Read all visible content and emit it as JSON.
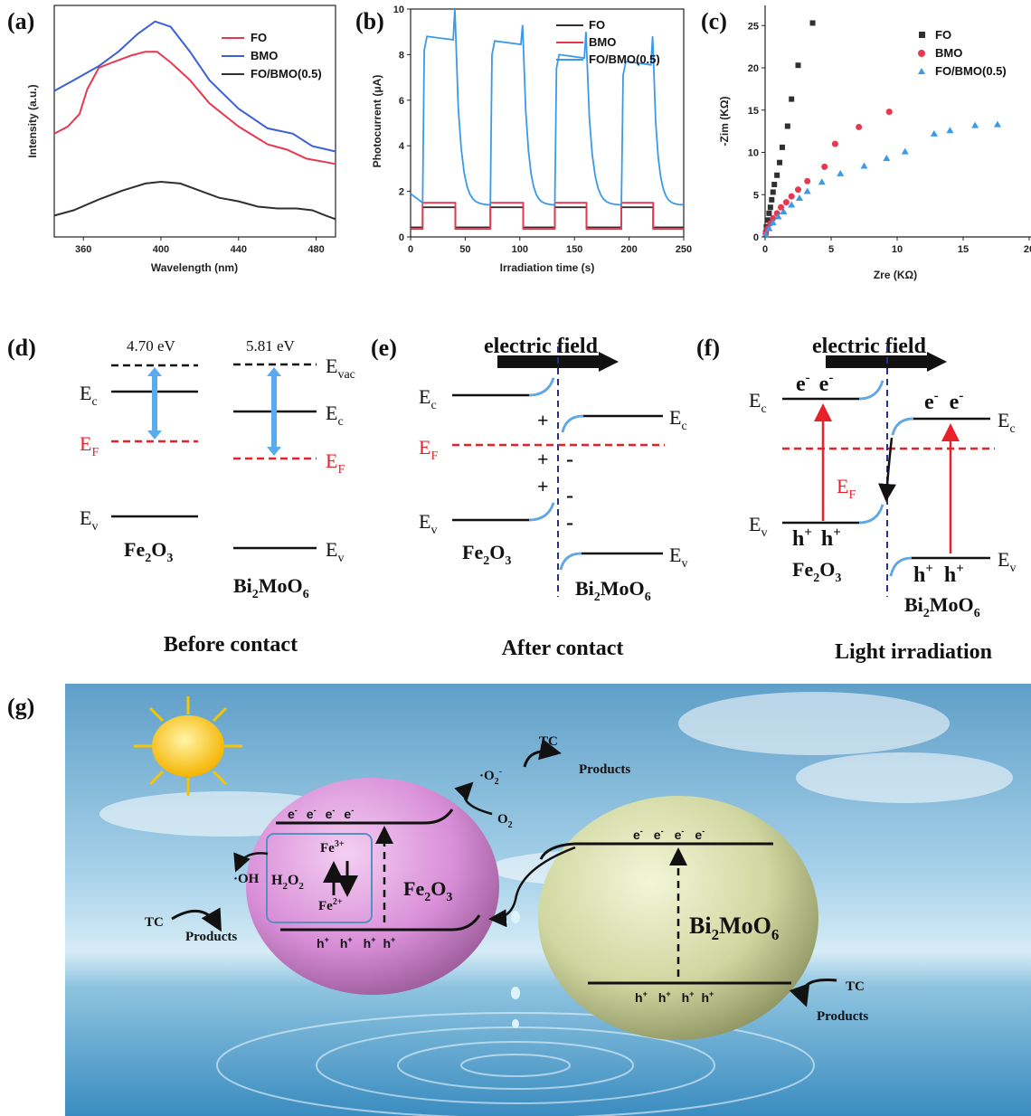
{
  "panel_labels": {
    "a": "(a)",
    "b": "(b)",
    "c": "(c)",
    "d": "(d)",
    "e": "(e)",
    "f": "(f)",
    "g": "(g)"
  },
  "colors": {
    "FO": "#e8384f",
    "BMO": "#3b5fd9",
    "FOBMO": "#303030",
    "fo_curr": "#303030",
    "bmo_curr": "#e8384f",
    "fobmo_curr": "#3b9ae8",
    "fermi": "#e8202a",
    "band": "#111111",
    "blue_arrow": "#5aaaf0",
    "red_arrow": "#e8202a"
  },
  "chart_data": [
    {
      "type": "line",
      "xlabel": "Wavelength (nm)",
      "ylabel": "Intensity (a.u.)",
      "xlim": [
        345,
        490
      ],
      "xticks": [
        "360",
        "400",
        "440",
        "480"
      ],
      "legend_position": "top-right",
      "series": [
        {
          "name": "FO",
          "points": [
            [
              345,
              58
            ],
            [
              352,
              62
            ],
            [
              358,
              69
            ],
            [
              362,
              83
            ],
            [
              368,
              95
            ],
            [
              375,
              98
            ],
            [
              385,
              102
            ],
            [
              392,
              104
            ],
            [
              398,
              104
            ],
            [
              405,
              98
            ],
            [
              415,
              88
            ],
            [
              425,
              75
            ],
            [
              440,
              62
            ],
            [
              455,
              52
            ],
            [
              465,
              49
            ],
            [
              475,
              44
            ],
            [
              485,
              42
            ],
            [
              490,
              41
            ]
          ]
        },
        {
          "name": "BMO",
          "points": [
            [
              345,
              82
            ],
            [
              355,
              88
            ],
            [
              368,
              96
            ],
            [
              378,
              104
            ],
            [
              388,
              114
            ],
            [
              397,
              121
            ],
            [
              405,
              118
            ],
            [
              415,
              104
            ],
            [
              425,
              88
            ],
            [
              440,
              72
            ],
            [
              455,
              61
            ],
            [
              468,
              58
            ],
            [
              478,
              51
            ],
            [
              490,
              48
            ]
          ]
        },
        {
          "name": "FO/BMO(0.5)",
          "points": [
            [
              345,
              12
            ],
            [
              355,
              15
            ],
            [
              368,
              21
            ],
            [
              380,
              26
            ],
            [
              392,
              30
            ],
            [
              400,
              31
            ],
            [
              410,
              30
            ],
            [
              420,
              26
            ],
            [
              430,
              22
            ],
            [
              440,
              20
            ],
            [
              450,
              17
            ],
            [
              460,
              16
            ],
            [
              470,
              16
            ],
            [
              478,
              15
            ],
            [
              485,
              12
            ],
            [
              490,
              10
            ]
          ]
        }
      ]
    },
    {
      "type": "line",
      "xlabel": "Irradiation time (s)",
      "ylabel": "Photocurrent (μA)",
      "xlim": [
        0,
        250
      ],
      "ylim": [
        0,
        10
      ],
      "xticks": [
        "0",
        "50",
        "100",
        "150",
        "200",
        "250"
      ],
      "yticks": [
        "0",
        "2",
        "4",
        "6",
        "8",
        "10"
      ],
      "legend_position": "top-right",
      "on_intervals": [
        [
          11,
          41
        ],
        [
          73,
          103
        ],
        [
          132,
          161
        ],
        [
          193,
          222
        ]
      ],
      "series": [
        {
          "name": "FO",
          "dark": 0.42,
          "light": 1.3
        },
        {
          "name": "BMO",
          "dark": 0.35,
          "light": 1.5
        },
        {
          "name": "FO/BMO(0.5)",
          "dark": 0.35,
          "light": 8.8,
          "peaks": [
            10.0,
            9.3,
            9.0,
            8.8
          ],
          "plateaus": [
            8.8,
            8.6,
            8.0,
            7.7
          ]
        }
      ]
    },
    {
      "type": "scatter",
      "xlabel": "Zre (KΩ)",
      "ylabel": "-Zim (KΩ)",
      "xlim": [
        0,
        20
      ],
      "ylim": [
        0,
        26
      ],
      "xticks": [
        "0",
        "5",
        "10",
        "15",
        "20"
      ],
      "yticks": [
        "0",
        "5",
        "10",
        "15",
        "20",
        "25"
      ],
      "legend_position": "top-right",
      "series": [
        {
          "name": "FO",
          "marker": "square",
          "points": [
            [
              0.05,
              0.5
            ],
            [
              0.1,
              1.2
            ],
            [
              0.2,
              2.0
            ],
            [
              0.3,
              2.8
            ],
            [
              0.4,
              3.5
            ],
            [
              0.5,
              4.4
            ],
            [
              0.6,
              5.3
            ],
            [
              0.7,
              6.2
            ],
            [
              0.9,
              7.3
            ],
            [
              1.1,
              8.8
            ],
            [
              1.3,
              10.6
            ],
            [
              1.7,
              13.1
            ],
            [
              2.0,
              16.3
            ],
            [
              2.5,
              20.3
            ],
            [
              3.6,
              25.3
            ]
          ]
        },
        {
          "name": "BMO",
          "marker": "circle",
          "points": [
            [
              0.05,
              0.4
            ],
            [
              0.2,
              1.0
            ],
            [
              0.4,
              1.6
            ],
            [
              0.6,
              2.2
            ],
            [
              0.9,
              2.8
            ],
            [
              1.2,
              3.5
            ],
            [
              1.6,
              4.1
            ],
            [
              2.0,
              4.8
            ],
            [
              2.5,
              5.6
            ],
            [
              3.2,
              6.6
            ],
            [
              4.5,
              8.3
            ],
            [
              5.3,
              11.0
            ],
            [
              7.1,
              13.0
            ],
            [
              9.4,
              14.8
            ]
          ]
        },
        {
          "name": "FO/BMO(0.5)",
          "marker": "triangle",
          "points": [
            [
              0.05,
              0.3
            ],
            [
              0.3,
              1.0
            ],
            [
              0.6,
              1.7
            ],
            [
              1.0,
              2.4
            ],
            [
              1.4,
              3.0
            ],
            [
              2.0,
              3.8
            ],
            [
              2.6,
              4.6
            ],
            [
              3.2,
              5.4
            ],
            [
              4.3,
              6.5
            ],
            [
              5.7,
              7.5
            ],
            [
              7.5,
              8.4
            ],
            [
              9.2,
              9.3
            ],
            [
              10.6,
              10.1
            ],
            [
              12.8,
              12.2
            ],
            [
              14.0,
              12.6
            ],
            [
              15.9,
              13.2
            ],
            [
              17.6,
              13.3
            ]
          ]
        }
      ]
    }
  ],
  "d": {
    "fo_gap": "4.70 eV",
    "bmo_gap": "5.81 eV",
    "evac": "E",
    "evac_sub": "vac",
    "ec": "E",
    "ec_sub": "c",
    "ef": "E",
    "ef_sub": "F",
    "ev": "E",
    "ev_sub": "v",
    "fe2o3": "Fe",
    "fe2o3_a": "2",
    "fe2o3_b": "O",
    "fe2o3_c": "3",
    "bi_a": "Bi",
    "bi_b": "2",
    "bi_c": "MoO",
    "bi_d": "6",
    "caption": "Before contact"
  },
  "e": {
    "title": "electric field",
    "plus": "+",
    "minus": "-",
    "caption": "After contact"
  },
  "f": {
    "title": "electric field",
    "eminus": "e",
    "hplus": "h",
    "sup_minus": "-",
    "sup_plus": "+",
    "caption": "Light irradiation"
  },
  "g": {
    "tc": "TC",
    "products": "Products",
    "o2rad": "·O",
    "o2rad_sub": "2",
    "o2rad_sup": "-",
    "o2": "O",
    "o2_sub": "2",
    "oh": "·OH",
    "fe3": "Fe",
    "fe3_sup": "3+",
    "fe2": "Fe",
    "fe2_sup": "2+",
    "h2o2": "H",
    "h2o2_a": "2",
    "h2o2_b": "O",
    "h2o2_c": "2",
    "e": "e",
    "h": "h"
  }
}
